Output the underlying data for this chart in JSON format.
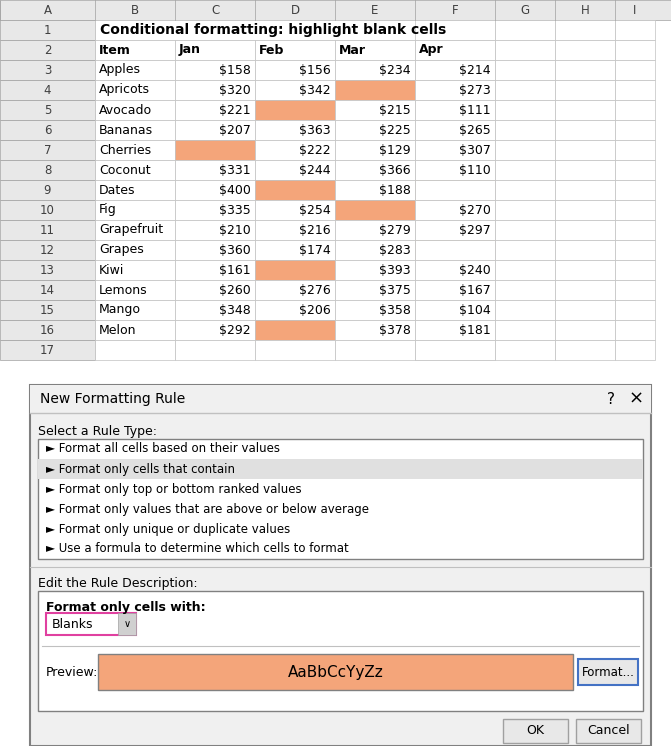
{
  "title": "Conditional formatting: highlight blank cells",
  "headers": [
    "Item",
    "Jan",
    "Feb",
    "Mar",
    "Apr"
  ],
  "col_labels": [
    "A",
    "B",
    "C",
    "D",
    "E",
    "F",
    "G",
    "H",
    "I"
  ],
  "rows": [
    [
      "Apples",
      "$158",
      "$156",
      "$234",
      "$214"
    ],
    [
      "Apricots",
      "$320",
      "$342",
      "",
      "$273"
    ],
    [
      "Avocado",
      "$221",
      "",
      "$215",
      "$111"
    ],
    [
      "Bananas",
      "$207",
      "$363",
      "$225",
      "$265"
    ],
    [
      "Cherries",
      "",
      "$222",
      "$129",
      "$307"
    ],
    [
      "Coconut",
      "$331",
      "$244",
      "$366",
      "$110"
    ],
    [
      "Dates",
      "$400",
      "",
      "$188",
      ""
    ],
    [
      "Fig",
      "$335",
      "$254",
      "",
      "$270"
    ],
    [
      "Grapefruit",
      "$210",
      "$216",
      "$279",
      "$297"
    ],
    [
      "Grapes",
      "$360",
      "$174",
      "$283",
      ""
    ],
    [
      "Kiwi",
      "$161",
      "",
      "$393",
      "$240"
    ],
    [
      "Lemons",
      "$260",
      "$276",
      "$375",
      "$167"
    ],
    [
      "Mango",
      "$348",
      "$206",
      "$358",
      "$104"
    ],
    [
      "Melon",
      "$292",
      "",
      "$378",
      "$181"
    ]
  ],
  "highlight_color": "#F4A57A",
  "header_bg": "#FFFFFF",
  "cell_bg": "#FFFFFF",
  "grid_color": "#C0C0C0",
  "row_nums": [
    1,
    2,
    3,
    4,
    5,
    6,
    7,
    8,
    9,
    10,
    11,
    12,
    13,
    14,
    15,
    16,
    17
  ],
  "dialog_bg": "#F0F0F0",
  "dialog_title": "New Formatting Rule",
  "rule_types": [
    "► Format all cells based on their values",
    "► Format only cells that contain",
    "► Format only top or bottom ranked values",
    "► Format only values that are above or below average",
    "► Format only unique or duplicate values",
    "► Use a formula to determine which cells to format"
  ],
  "selected_rule_idx": 1,
  "selected_rule_bg": "#E0E0E0",
  "edit_label": "Edit the Rule Description:",
  "format_label": "Format only cells with:",
  "dropdown_value": "Blanks",
  "preview_text": "AaBbCcYyZz",
  "preview_bg": "#F4A57A",
  "ok_text": "OK",
  "cancel_text": "Cancel",
  "format_btn_text": "Format...",
  "select_rule_label": "Select a Rule Type:"
}
